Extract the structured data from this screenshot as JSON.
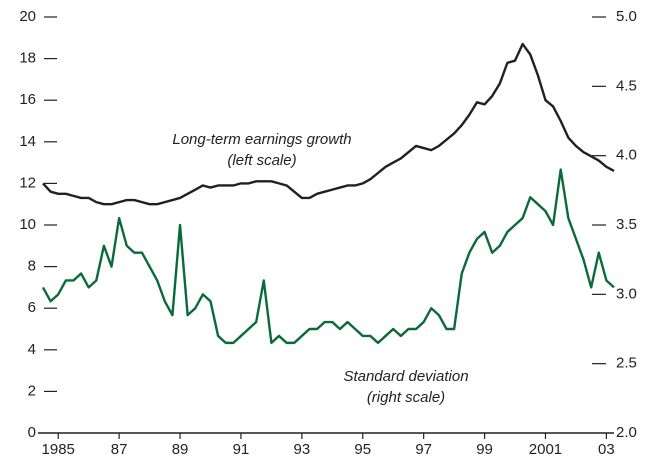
{
  "chart_data": {
    "type": "line",
    "annotations": [
      "Long-term earnings growth",
      "(left scale)",
      "Standard deviation",
      "(right scale)"
    ],
    "x": [
      1984.5,
      1984.75,
      1985,
      1985.25,
      1985.5,
      1985.75,
      1986,
      1986.25,
      1986.5,
      1986.75,
      1987,
      1987.25,
      1987.5,
      1987.75,
      1988,
      1988.25,
      1988.5,
      1988.75,
      1989,
      1989.25,
      1989.5,
      1989.75,
      1990,
      1990.25,
      1990.5,
      1990.75,
      1991,
      1991.25,
      1991.5,
      1991.75,
      1992,
      1992.25,
      1992.5,
      1992.75,
      1993,
      1993.25,
      1993.5,
      1993.75,
      1994,
      1994.25,
      1994.5,
      1994.75,
      1995,
      1995.25,
      1995.5,
      1995.75,
      1996,
      1996.25,
      1996.5,
      1996.75,
      1997,
      1997.25,
      1997.5,
      1997.75,
      1998,
      1998.25,
      1998.5,
      1998.75,
      1999,
      1999.25,
      1999.5,
      1999.75,
      2000,
      2000.25,
      2000.5,
      2000.75,
      2001,
      2001.25,
      2001.5,
      2001.75,
      2002,
      2002.25,
      2002.5,
      2002.75,
      2003,
      2003.25
    ],
    "series": [
      {
        "name": "Long-term earnings growth",
        "color": "#231f20",
        "values": [
          12.0,
          11.6,
          11.5,
          11.5,
          11.4,
          11.3,
          11.3,
          11.1,
          11.0,
          11.0,
          11.1,
          11.2,
          11.2,
          11.1,
          11.0,
          11.0,
          11.1,
          11.2,
          11.3,
          11.5,
          11.7,
          11.9,
          11.8,
          11.9,
          11.9,
          11.9,
          12.0,
          12.0,
          12.1,
          12.1,
          12.1,
          12.0,
          11.9,
          11.6,
          11.3,
          11.3,
          11.5,
          11.6,
          11.7,
          11.8,
          11.9,
          11.9,
          12.0,
          12.2,
          12.5,
          12.8,
          13.0,
          13.2,
          13.5,
          13.8,
          13.7,
          13.6,
          13.8,
          14.1,
          14.4,
          14.8,
          15.3,
          15.9,
          15.8,
          16.2,
          16.8,
          17.8,
          17.9,
          18.7,
          18.2,
          17.2,
          16.0,
          15.7,
          15.0,
          14.2,
          13.8,
          13.5,
          13.3,
          13.1,
          12.8,
          12.6
        ]
      },
      {
        "name": "Standard deviation",
        "color": "#0a6b3a",
        "axis": "y2",
        "values": [
          3.05,
          2.95,
          3.0,
          3.1,
          3.1,
          3.15,
          3.05,
          3.1,
          3.35,
          3.2,
          3.55,
          3.35,
          3.3,
          3.3,
          3.2,
          3.1,
          2.95,
          2.85,
          3.5,
          2.85,
          2.9,
          3.0,
          2.95,
          2.7,
          2.65,
          2.65,
          2.7,
          2.75,
          2.8,
          3.1,
          2.65,
          2.7,
          2.65,
          2.65,
          2.7,
          2.75,
          2.75,
          2.8,
          2.8,
          2.75,
          2.8,
          2.75,
          2.7,
          2.7,
          2.65,
          2.7,
          2.75,
          2.7,
          2.75,
          2.75,
          2.8,
          2.9,
          2.85,
          2.75,
          2.75,
          3.15,
          3.3,
          3.4,
          3.45,
          3.3,
          3.35,
          3.45,
          3.5,
          3.55,
          3.7,
          3.65,
          3.6,
          3.5,
          3.9,
          3.55,
          3.4,
          3.25,
          3.05,
          3.3,
          3.1,
          3.05
        ]
      }
    ],
    "xlim": [
      1984.5,
      2003.25
    ],
    "xticks": [
      {
        "value": 1985,
        "label": "1985"
      },
      {
        "value": 1987,
        "label": "87"
      },
      {
        "value": 1989,
        "label": "89"
      },
      {
        "value": 1991,
        "label": "91"
      },
      {
        "value": 1993,
        "label": "93"
      },
      {
        "value": 1995,
        "label": "95"
      },
      {
        "value": 1997,
        "label": "97"
      },
      {
        "value": 1999,
        "label": "99"
      },
      {
        "value": 2001,
        "label": "2001"
      },
      {
        "value": 2003,
        "label": "03"
      }
    ],
    "ylim": [
      0,
      20
    ],
    "yticks": [
      0,
      2,
      4,
      6,
      8,
      10,
      12,
      14,
      16,
      18,
      20
    ],
    "y2lim": [
      2,
      5
    ],
    "y2ticks": [
      {
        "value": 2,
        "label": "2.0"
      },
      2.5,
      {
        "value": 3,
        "label": "3.0"
      },
      3.5,
      {
        "value": 4,
        "label": "4.0"
      },
      4.5,
      {
        "value": 5,
        "label": "5.0"
      }
    ]
  }
}
